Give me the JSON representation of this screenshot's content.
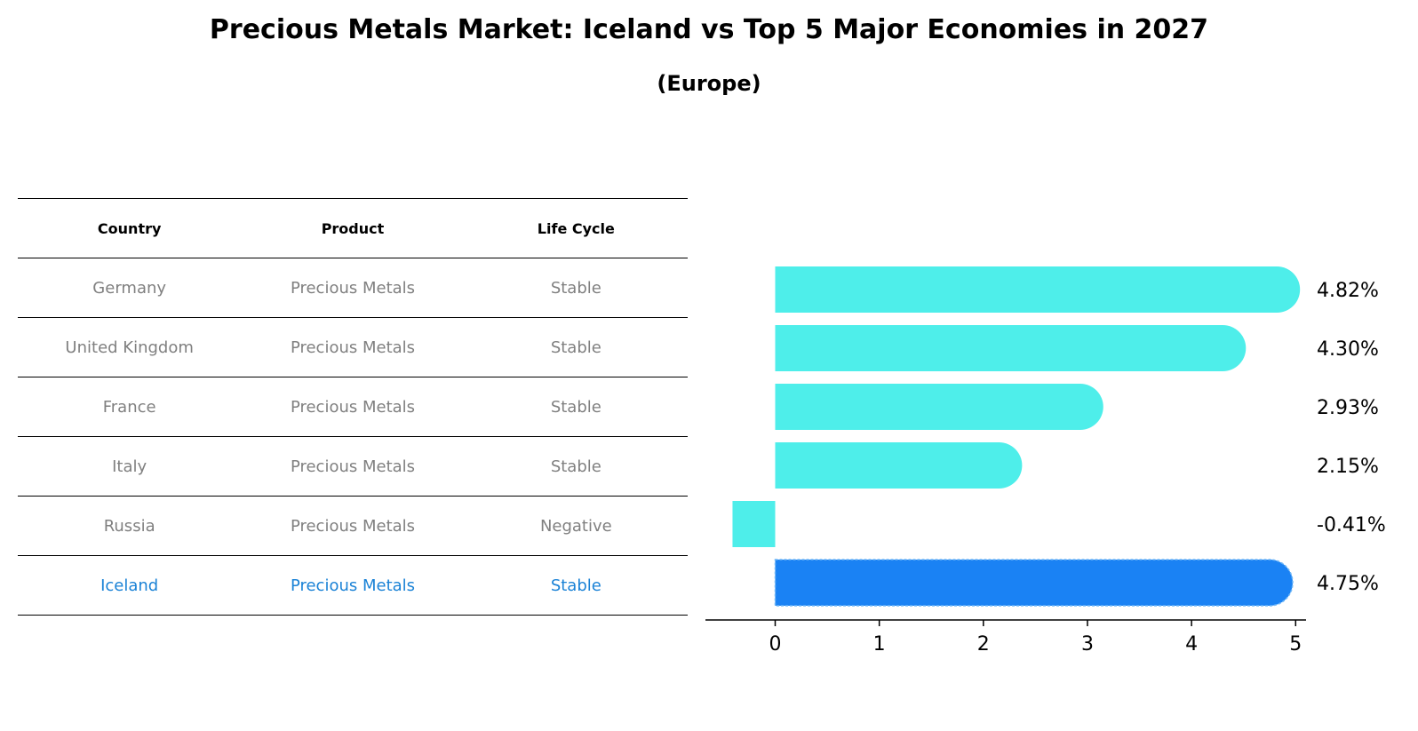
{
  "title": "Precious Metals Market: Iceland vs Top 5 Major Economies in 2027",
  "subtitle": "(Europe)",
  "table": {
    "headers": [
      "Country",
      "Product",
      "Life Cycle"
    ],
    "rows": [
      [
        "Germany",
        "Precious Metals",
        "Stable"
      ],
      [
        "United Kingdom",
        "Precious Metals",
        "Stable"
      ],
      [
        "France",
        "Precious Metals",
        "Stable"
      ],
      [
        "Italy",
        "Precious Metals",
        "Stable"
      ],
      [
        "Russia",
        "Precious Metals",
        "Negative"
      ],
      [
        "Iceland",
        "Precious Metals",
        "Stable"
      ]
    ]
  },
  "colors": {
    "bar": "#4eeeea",
    "highlight_bar": "#1a82f4",
    "highlight_text": "#1a82d6",
    "muted_text": "#808080"
  },
  "chart_data": {
    "type": "bar",
    "orientation": "horizontal",
    "categories": [
      "Germany",
      "United Kingdom",
      "France",
      "Italy",
      "Russia",
      "Iceland"
    ],
    "values": [
      4.82,
      4.3,
      2.93,
      2.15,
      -0.41,
      4.75
    ],
    "value_labels": [
      "4.82%",
      "4.30%",
      "2.93%",
      "2.15%",
      "-0.41%",
      "4.75%"
    ],
    "highlight_index": 5,
    "xlim": [
      -0.67,
      5.1
    ],
    "xticks": [
      0,
      1,
      2,
      3,
      4,
      5
    ],
    "grid": false
  }
}
